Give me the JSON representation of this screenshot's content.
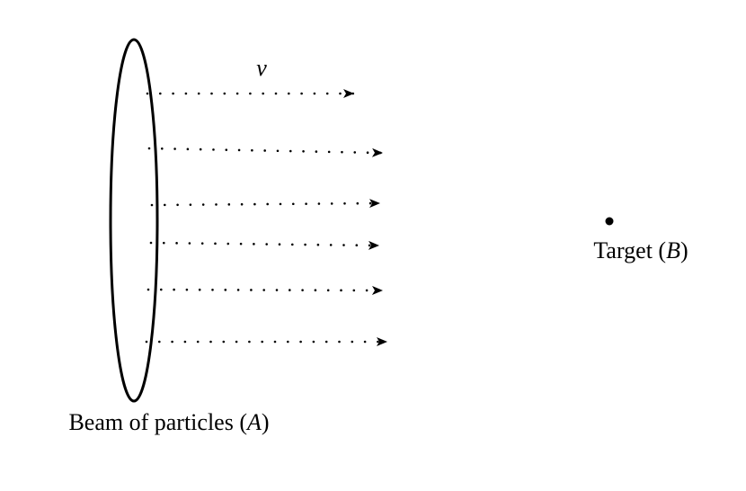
{
  "beam": {
    "label_text": "Beam of particles (",
    "label_var": "A",
    "label_close": ")"
  },
  "velocity": {
    "label": "v"
  },
  "target": {
    "label_text": "Target (",
    "label_var": "B",
    "label_close": ")"
  },
  "colors": {
    "ink": "#000000",
    "background": "#ffffff"
  }
}
